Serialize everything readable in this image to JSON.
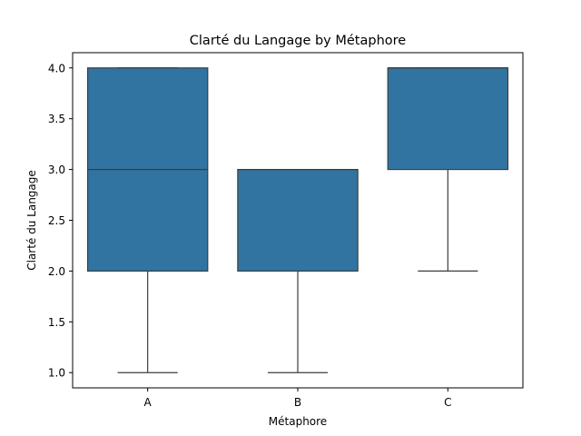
{
  "chart_data": {
    "type": "box",
    "title": "Clarté du Langage by Métaphore",
    "xlabel": "Métaphore",
    "ylabel": "Clarté du Langage",
    "categories": [
      "A",
      "B",
      "C"
    ],
    "boxes": [
      {
        "category": "A",
        "whisker_low": 1.0,
        "q1": 2.0,
        "median": 3.0,
        "q3": 4.0,
        "whisker_high": 4.0
      },
      {
        "category": "B",
        "whisker_low": 1.0,
        "q1": 2.0,
        "median": 3.0,
        "q3": 3.0,
        "whisker_high": 3.0
      },
      {
        "category": "C",
        "whisker_low": 2.0,
        "q1": 3.0,
        "median": 4.0,
        "q3": 4.0,
        "whisker_high": 4.0
      }
    ],
    "yticks": [
      "1.0",
      "1.5",
      "2.0",
      "2.5",
      "3.0",
      "3.5",
      "4.0"
    ],
    "ylim": [
      0.85,
      4.15
    ],
    "grid": false,
    "box_color": "#3274a1",
    "line_color": "#3d3d3d"
  }
}
